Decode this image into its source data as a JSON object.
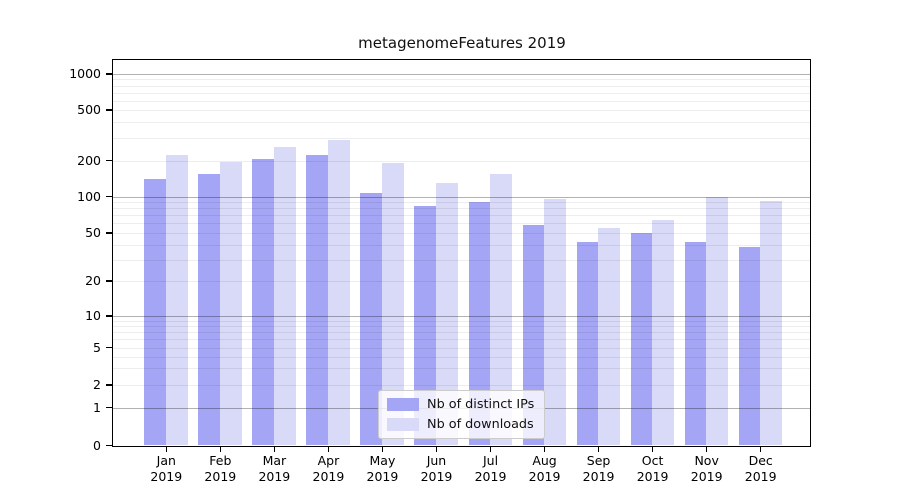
{
  "chart_data": {
    "type": "bar",
    "title": "metagenomeFeatures 2019",
    "year_label": "2019",
    "categories": [
      "Jan",
      "Feb",
      "Mar",
      "Apr",
      "May",
      "Jun",
      "Jul",
      "Aug",
      "Sep",
      "Oct",
      "Nov",
      "Dec"
    ],
    "series": [
      {
        "name": "Nb of distinct IPs",
        "color": "#a5a5f5",
        "values": [
          140,
          155,
          205,
          220,
          108,
          84,
          91,
          58,
          42,
          50,
          42,
          38
        ]
      },
      {
        "name": "Nb of downloads",
        "color": "#d9d9f8",
        "values": [
          220,
          195,
          255,
          290,
          190,
          130,
          155,
          95,
          55,
          64,
          100,
          93
        ]
      }
    ],
    "yscale": "symlog",
    "y_ticks": [
      0,
      1,
      2,
      5,
      10,
      20,
      50,
      100,
      200,
      500,
      1000
    ],
    "y_major_gridlines": [
      1,
      10,
      100,
      1000
    ],
    "y_minor_gridlines": [
      2,
      3,
      4,
      5,
      6,
      7,
      8,
      9,
      20,
      30,
      40,
      50,
      60,
      70,
      80,
      90,
      200,
      300,
      400,
      500,
      600,
      700,
      800,
      900
    ],
    "ylim": [
      0,
      1300
    ],
    "xlabel": "",
    "ylabel": "",
    "grid": true,
    "legend_position": "lower center"
  }
}
